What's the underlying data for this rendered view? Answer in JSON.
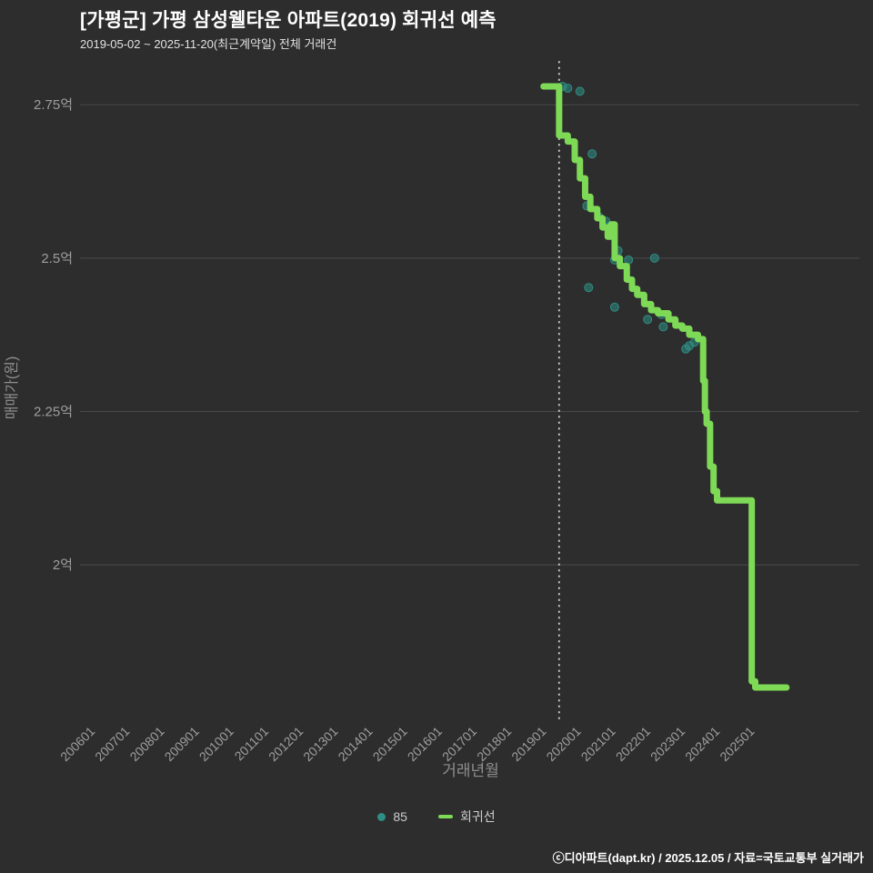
{
  "footer": {
    "credit": "ⓒ디아파트(dapt.kr) / 2025.12.05 / 자료=국토교통부 실거래가"
  },
  "chart_data": {
    "type": "scatter",
    "title": "[가평군] 가평 삼성웰타운 아파트(2019) 회귀선 예측",
    "subtitle": "2019-05-02 ~ 2025-11-20(최근계약일) 전체 거래건",
    "xlabel": "거래년월",
    "ylabel": "매매가(원)",
    "grid": true,
    "legend_position": "bottom",
    "xlim": [
      2005.6,
      2028.0
    ],
    "ylim": [
      1.757,
      2.82
    ],
    "vline_x": 2019.35,
    "y_ticks": [
      {
        "label": "2.75억",
        "value": 2.75
      },
      {
        "label": "2.5억",
        "value": 2.5
      },
      {
        "label": "2.25억",
        "value": 2.25
      },
      {
        "label": "2억",
        "value": 2.0
      }
    ],
    "x_ticks": [
      {
        "label": "200601",
        "year": 2006
      },
      {
        "label": "200701",
        "year": 2007
      },
      {
        "label": "200801",
        "year": 2008
      },
      {
        "label": "200901",
        "year": 2009
      },
      {
        "label": "201001",
        "year": 2010
      },
      {
        "label": "201101",
        "year": 2011
      },
      {
        "label": "201201",
        "year": 2012
      },
      {
        "label": "201301",
        "year": 2013
      },
      {
        "label": "201401",
        "year": 2014
      },
      {
        "label": "201501",
        "year": 2015
      },
      {
        "label": "201601",
        "year": 2016
      },
      {
        "label": "201701",
        "year": 2017
      },
      {
        "label": "201801",
        "year": 2018
      },
      {
        "label": "201901",
        "year": 2019
      },
      {
        "label": "202001",
        "year": 2020
      },
      {
        "label": "202101",
        "year": 2021
      },
      {
        "label": "202201",
        "year": 2022
      },
      {
        "label": "202301",
        "year": 2023
      },
      {
        "label": "202401",
        "year": 2024
      },
      {
        "label": "202501",
        "year": 2025
      }
    ],
    "legend": [
      {
        "label": "85",
        "color": "#2e8f85"
      },
      {
        "label": "회귀선",
        "color": "#7ed957"
      }
    ],
    "theme": {
      "background": "#2d2d2d",
      "grid": "#4a4a4a",
      "tick": "#9e9e9e",
      "axis_label": "#8f8f8f",
      "vline": "#c8c8c8",
      "title": "#ffffff",
      "subtitle": "#e2e2e2"
    },
    "series": [
      {
        "name": "85",
        "type": "scatter",
        "color": "#2e8f85",
        "points": [
          [
            2019.45,
            2.78
          ],
          [
            2019.6,
            2.777
          ],
          [
            2019.95,
            2.772
          ],
          [
            2020.3,
            2.67
          ],
          [
            2020.15,
            2.585
          ],
          [
            2020.5,
            2.567
          ],
          [
            2020.7,
            2.56
          ],
          [
            2020.8,
            2.552
          ],
          [
            2020.2,
            2.452
          ],
          [
            2020.95,
            2.497
          ],
          [
            2021.05,
            2.512
          ],
          [
            2021.35,
            2.497
          ],
          [
            2022.1,
            2.5
          ],
          [
            2020.95,
            2.42
          ],
          [
            2021.9,
            2.4
          ],
          [
            2022.3,
            2.408
          ],
          [
            2022.35,
            2.388
          ],
          [
            2023.0,
            2.352
          ],
          [
            2023.1,
            2.357
          ],
          [
            2023.25,
            2.363
          ]
        ]
      },
      {
        "name": "회귀선",
        "type": "line",
        "color": "#7ed957",
        "points": [
          [
            2018.9,
            2.78
          ],
          [
            2019.35,
            2.78
          ],
          [
            2019.35,
            2.7
          ],
          [
            2019.6,
            2.7
          ],
          [
            2019.6,
            2.69
          ],
          [
            2019.8,
            2.69
          ],
          [
            2019.8,
            2.66
          ],
          [
            2019.95,
            2.66
          ],
          [
            2019.95,
            2.63
          ],
          [
            2020.1,
            2.63
          ],
          [
            2020.1,
            2.6
          ],
          [
            2020.25,
            2.6
          ],
          [
            2020.25,
            2.58
          ],
          [
            2020.45,
            2.58
          ],
          [
            2020.45,
            2.565
          ],
          [
            2020.6,
            2.565
          ],
          [
            2020.6,
            2.55
          ],
          [
            2020.75,
            2.55
          ],
          [
            2020.75,
            2.535
          ],
          [
            2020.85,
            2.535
          ],
          [
            2020.85,
            2.555
          ],
          [
            2020.95,
            2.555
          ],
          [
            2020.95,
            2.5
          ],
          [
            2021.1,
            2.5
          ],
          [
            2021.1,
            2.487
          ],
          [
            2021.3,
            2.487
          ],
          [
            2021.3,
            2.465
          ],
          [
            2021.45,
            2.465
          ],
          [
            2021.45,
            2.45
          ],
          [
            2021.6,
            2.45
          ],
          [
            2021.6,
            2.44
          ],
          [
            2021.8,
            2.44
          ],
          [
            2021.8,
            2.425
          ],
          [
            2022.0,
            2.425
          ],
          [
            2022.0,
            2.415
          ],
          [
            2022.2,
            2.415
          ],
          [
            2022.2,
            2.41
          ],
          [
            2022.5,
            2.41
          ],
          [
            2022.5,
            2.4
          ],
          [
            2022.7,
            2.4
          ],
          [
            2022.7,
            2.39
          ],
          [
            2022.9,
            2.39
          ],
          [
            2022.9,
            2.385
          ],
          [
            2023.1,
            2.385
          ],
          [
            2023.1,
            2.375
          ],
          [
            2023.35,
            2.375
          ],
          [
            2023.35,
            2.368
          ],
          [
            2023.5,
            2.368
          ],
          [
            2023.5,
            2.3
          ],
          [
            2023.55,
            2.3
          ],
          [
            2023.55,
            2.25
          ],
          [
            2023.6,
            2.25
          ],
          [
            2023.6,
            2.23
          ],
          [
            2023.7,
            2.23
          ],
          [
            2023.7,
            2.16
          ],
          [
            2023.8,
            2.16
          ],
          [
            2023.8,
            2.12
          ],
          [
            2023.9,
            2.12
          ],
          [
            2023.9,
            2.105
          ],
          [
            2024.0,
            2.105
          ],
          [
            2024.9,
            2.105
          ],
          [
            2024.9,
            1.81
          ],
          [
            2025.0,
            1.81
          ],
          [
            2025.0,
            1.8
          ],
          [
            2025.9,
            1.8
          ]
        ]
      }
    ]
  }
}
